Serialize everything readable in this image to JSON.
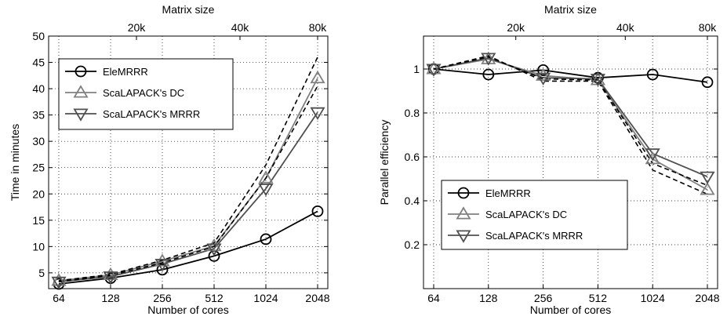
{
  "chart_data": [
    {
      "type": "line",
      "x_categories": [
        "64",
        "128",
        "256",
        "512",
        "1024",
        "2048"
      ],
      "xlabel": "Number of cores",
      "top_xlabel": "Matrix size",
      "top_ticks": [
        "20k",
        "40k",
        "80k"
      ],
      "ylabel": "Time in minutes",
      "ylim": [
        2,
        50
      ],
      "yticks": [
        5,
        10,
        15,
        20,
        25,
        30,
        35,
        40,
        45,
        50
      ],
      "grid": true,
      "legend_position": "top-left",
      "series": [
        {
          "name": "EleMRRR",
          "marker": "circle",
          "color": "#000000",
          "values": [
            2.9,
            4.0,
            5.6,
            8.2,
            11.4,
            16.7
          ]
        },
        {
          "name": "ScaLAPACK's DC",
          "marker": "triangle-up",
          "color": "#808080",
          "values": [
            3.5,
            4.6,
            7.2,
            10.1,
            23.0,
            42.0
          ]
        },
        {
          "name": "ScaLAPACK's MRRR",
          "marker": "triangle-down",
          "color": "#505050",
          "values": [
            3.3,
            4.3,
            6.7,
            9.6,
            21.0,
            35.5
          ]
        },
        {
          "name": "",
          "style": "dashed",
          "color": "#000000",
          "values": [
            3.5,
            4.7,
            7.4,
            10.7,
            25.5,
            46.0
          ]
        },
        {
          "name": "",
          "style": "dashed",
          "color": "#000000",
          "values": [
            3.3,
            4.5,
            6.9,
            10.0,
            23.0,
            40.5
          ]
        }
      ]
    },
    {
      "type": "line",
      "x_categories": [
        "64",
        "128",
        "256",
        "512",
        "1024",
        "2048"
      ],
      "xlabel": "Number of cores",
      "top_xlabel": "Matrix size",
      "top_ticks": [
        "20k",
        "40k",
        "80k"
      ],
      "ylabel": "Parallel efficiency",
      "ylim": [
        0,
        1.15
      ],
      "yticks": [
        0.2,
        0.4,
        0.6,
        0.8,
        1
      ],
      "grid": true,
      "legend_position": "bottom-left",
      "series": [
        {
          "name": "EleMRRR",
          "marker": "circle",
          "color": "#000000",
          "values": [
            1.0,
            0.975,
            0.995,
            0.96,
            0.975,
            0.94
          ]
        },
        {
          "name": "ScaLAPACK's DC",
          "marker": "triangle-up",
          "color": "#808080",
          "values": [
            1.0,
            1.045,
            0.97,
            0.95,
            0.59,
            0.45
          ]
        },
        {
          "name": "ScaLAPACK's MRRR",
          "marker": "triangle-down",
          "color": "#505050",
          "values": [
            1.0,
            1.05,
            0.96,
            0.955,
            0.615,
            0.51
          ]
        },
        {
          "name": "",
          "style": "dashed",
          "color": "#000000",
          "values": [
            1.0,
            1.06,
            0.945,
            0.945,
            0.54,
            0.43
          ]
        },
        {
          "name": "",
          "style": "dashed",
          "color": "#000000",
          "values": [
            1.0,
            1.055,
            0.955,
            0.95,
            0.57,
            0.47
          ]
        }
      ]
    }
  ]
}
